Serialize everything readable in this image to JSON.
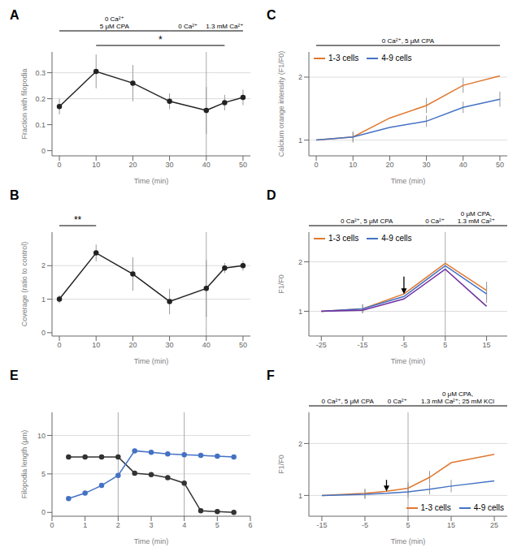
{
  "chart_data": [
    {
      "type": "line",
      "title": "A",
      "xlabel": "Time (min)",
      "ylabel": "Fraction with filopodia",
      "x": [
        0,
        10,
        20,
        30,
        40,
        45,
        50
      ],
      "xlim": [
        -2,
        52
      ],
      "xticks": [
        0,
        10,
        20,
        30,
        40,
        50
      ],
      "ylim": [
        -0.02,
        0.38
      ],
      "yticks": [
        0,
        0.1,
        0.2,
        0.3
      ],
      "series": [
        {
          "color": "#222222",
          "marker": "circle",
          "values": [
            0.17,
            0.305,
            0.26,
            0.19,
            0.155,
            0.185,
            0.205
          ],
          "errors": [
            0.03,
            0.065,
            0.07,
            0.03,
            0.09,
            0.03,
            0.03
          ]
        }
      ],
      "hlines": [
        0.2,
        0.3
      ],
      "vlines": [
        40
      ],
      "annotations": [
        {
          "text": "0 Ca²⁺\n5 μM CPA",
          "x": [
            0,
            30
          ]
        },
        {
          "text": "0 Ca²⁺",
          "x": [
            30,
            40
          ]
        },
        {
          "text": "1.3 mM Ca²⁺",
          "x": [
            40,
            50
          ]
        }
      ],
      "significance": [
        {
          "text": "*",
          "x": [
            10,
            45
          ]
        }
      ]
    },
    {
      "type": "line",
      "title": "C",
      "xlabel": "Time (min)",
      "ylabel": "Calcium orange intensity (F1/F0)",
      "x": [
        0,
        10,
        20,
        30,
        40,
        50
      ],
      "xlim": [
        -2,
        52
      ],
      "xticks": [
        0,
        10,
        20,
        30,
        40,
        50
      ],
      "ylim": [
        0.75,
        2.4
      ],
      "yticks": [
        1,
        2
      ],
      "series": [
        {
          "name": "1-3 cells",
          "color": "#E07830",
          "marker": "none",
          "values": [
            1.0,
            1.05,
            1.35,
            1.55,
            1.87,
            2.02
          ],
          "errors": [
            0.0,
            0.07,
            0.0,
            0.12,
            0.12,
            0.0
          ]
        },
        {
          "name": "4-9 cells",
          "color": "#4472C4",
          "marker": "none",
          "values": [
            1.0,
            1.05,
            1.2,
            1.3,
            1.52,
            1.65
          ],
          "errors": [
            0.0,
            0.09,
            0.0,
            0.09,
            0.09,
            0.12
          ]
        }
      ],
      "legend": "upper left",
      "hlines": [
        1,
        2
      ],
      "annotations": [
        {
          "text": "0 Ca²⁺, 5 μM CPA",
          "x": [
            0,
            50
          ]
        }
      ]
    },
    {
      "type": "line",
      "title": "B",
      "xlabel": "Time (min)",
      "ylabel": "Coverage (ratio to control)",
      "x": [
        0,
        10,
        20,
        30,
        40,
        45,
        50
      ],
      "xlim": [
        -2,
        52
      ],
      "xticks": [
        0,
        10,
        20,
        30,
        40,
        50
      ],
      "ylim": [
        -0.1,
        3.0
      ],
      "yticks": [
        0,
        1,
        2
      ],
      "series": [
        {
          "color": "#222222",
          "marker": "circle",
          "values": [
            1.0,
            2.38,
            1.75,
            0.93,
            1.32,
            1.93,
            2.0
          ],
          "errors": [
            0.12,
            0.25,
            0.5,
            0.38,
            0.85,
            0.15,
            0.15
          ]
        }
      ],
      "hlines": [
        1,
        2
      ],
      "vlines": [
        40
      ],
      "significance": [
        {
          "text": "**",
          "x": [
            0,
            10
          ]
        }
      ]
    },
    {
      "type": "line",
      "title": "D",
      "xlabel": "Time (min)",
      "ylabel": "F1/F0",
      "x": [
        -25,
        -15,
        -5,
        5,
        15
      ],
      "xlim": [
        -28,
        20
      ],
      "xticks": [
        -25,
        -15,
        -5,
        5,
        15
      ],
      "ylim": [
        0.5,
        2.6
      ],
      "yticks": [
        1,
        2
      ],
      "series": [
        {
          "name": "1-3 cells",
          "color": "#E07830",
          "marker": "none",
          "values": [
            1.0,
            1.05,
            1.35,
            1.97,
            1.42
          ],
          "errors": [
            0.0,
            0.09,
            0.0,
            0.0,
            0.18
          ]
        },
        {
          "name": "4-9 cells",
          "color": "#4472C4",
          "marker": "none",
          "values": [
            1.0,
            1.05,
            1.3,
            1.92,
            1.35
          ],
          "errors": [
            0.0,
            0.09,
            0.0,
            0.0,
            0.18
          ]
        },
        {
          "color": "#7030A0",
          "marker": "none",
          "values": [
            1.0,
            1.02,
            1.25,
            1.85,
            1.1
          ]
        }
      ],
      "legend": "upper left",
      "hlines": [
        1,
        2
      ],
      "vlines": [
        5
      ],
      "arrows": [
        {
          "x": -5,
          "y_from": 1.7,
          "y_to": 1.35
        }
      ],
      "annotations": [
        {
          "text": "0 Ca²⁺, 5 μM CPA",
          "x": [
            -28,
            0
          ]
        },
        {
          "text": "0 Ca²⁺",
          "x": [
            0,
            5
          ]
        },
        {
          "text": "0 μM CPA,\n1.3 mM Ca²⁺",
          "x": [
            5,
            20
          ]
        }
      ]
    },
    {
      "type": "line",
      "title": "E",
      "xlabel": "Time (min)",
      "ylabel": "Filopodia length (μm)",
      "x": [
        0.5,
        1.0,
        1.5,
        2.0,
        2.5,
        3.0,
        3.5,
        4.0,
        4.5,
        5.0,
        5.5
      ],
      "xlim": [
        0,
        6
      ],
      "xticks": [
        0,
        1,
        2,
        3,
        4,
        5,
        6
      ],
      "ylim": [
        -0.5,
        13
      ],
      "yticks": [
        0,
        5,
        10
      ],
      "series": [
        {
          "color": "#333333",
          "marker": "circle",
          "values": [
            7.2,
            7.2,
            7.2,
            7.2,
            5.1,
            4.9,
            4.5,
            3.8,
            0.2,
            0.1,
            0.0
          ]
        },
        {
          "color": "#4472C4",
          "marker": "circle",
          "values": [
            1.8,
            2.5,
            3.5,
            4.8,
            8.0,
            7.8,
            7.6,
            7.5,
            7.4,
            7.3,
            7.2
          ]
        }
      ],
      "hlines": [
        5,
        10
      ],
      "vlines": [
        2,
        4
      ]
    },
    {
      "type": "line",
      "title": "F",
      "xlabel": "Time (min)",
      "ylabel": "F1/F0",
      "x": [
        -15,
        -5,
        0,
        5,
        10,
        15,
        25
      ],
      "xlim": [
        -18,
        28
      ],
      "xticks": [
        -15,
        -5,
        5,
        15,
        25
      ],
      "ylim": [
        0.6,
        2.6
      ],
      "yticks": [
        1,
        2
      ],
      "series": [
        {
          "name": "1-3 cells",
          "color": "#E07830",
          "marker": "none",
          "values": [
            1.0,
            1.04,
            1.08,
            1.14,
            1.35,
            1.63,
            1.79
          ],
          "errors": [
            0.0,
            0.09,
            0.0,
            0.12,
            0.12,
            0.0,
            0.0
          ]
        },
        {
          "name": "4-9 cells",
          "color": "#4472C4",
          "marker": "none",
          "values": [
            1.0,
            1.02,
            1.04,
            1.07,
            1.12,
            1.18,
            1.28
          ],
          "errors": [
            0.0,
            0.09,
            0.0,
            0.12,
            0.1,
            0.12,
            0.0
          ]
        }
      ],
      "legend": "lower right",
      "hlines": [
        1,
        2
      ],
      "vlines": [
        5
      ],
      "arrows": [
        {
          "x": 0,
          "y_from": 1.3,
          "y_to": 1.08
        }
      ],
      "annotations": [
        {
          "text": "0 Ca²⁺, 5 μM CPA",
          "x": [
            -18,
            0
          ]
        },
        {
          "text": "0 Ca²⁺",
          "x": [
            0,
            5
          ]
        },
        {
          "text": "0 μM CPA,\n1.3 mM Ca²⁺; 25 mM KCl",
          "x": [
            5,
            28
          ]
        }
      ]
    }
  ]
}
